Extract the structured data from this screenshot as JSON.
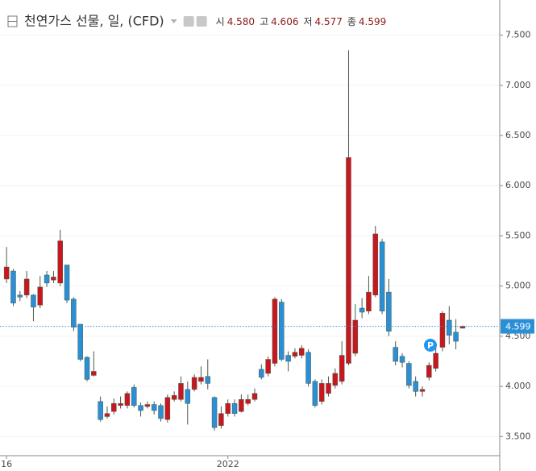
{
  "chart_data": {
    "type": "candlestick",
    "title": "천연가스 선물, 일, (CFD)",
    "ohlc_labels": [
      "시",
      "고",
      "저",
      "종"
    ],
    "ohlc_values": [
      "4.580",
      "4.606",
      "4.577",
      "4.599"
    ],
    "annotation": "P",
    "categories": [
      "16",
      null,
      null,
      null,
      null,
      null,
      null,
      null,
      null,
      null,
      null,
      null,
      null,
      null,
      null,
      null,
      null,
      null,
      null,
      null,
      null,
      null,
      null,
      null,
      null,
      null,
      null,
      null,
      null,
      null,
      null,
      null,
      null,
      "2022",
      null,
      null,
      null,
      null,
      null,
      null,
      null,
      null,
      null,
      null,
      null,
      null,
      null,
      null,
      null,
      null,
      null,
      null,
      null,
      null,
      null,
      null,
      null,
      null,
      null,
      null,
      null,
      null,
      null,
      null,
      null,
      null,
      null,
      null,
      null
    ],
    "open": [
      5.07,
      5.15,
      4.91,
      4.91,
      4.91,
      4.81,
      5.11,
      5.06,
      5.03,
      5.21,
      4.87,
      4.62,
      4.29,
      4.11,
      3.85,
      3.7,
      3.75,
      3.81,
      3.81,
      3.99,
      3.81,
      3.8,
      3.82,
      3.81,
      3.67,
      3.87,
      3.87,
      3.97,
      3.97,
      4.05,
      4.1,
      3.89,
      3.61,
      3.73,
      3.83,
      3.75,
      3.83,
      3.87,
      4.17,
      4.13,
      4.23,
      4.84,
      4.31,
      4.3,
      4.31,
      4.34,
      4.05,
      3.85,
      3.93,
      4.01,
      4.05,
      4.23,
      4.33,
      4.78,
      4.75,
      4.91,
      5.44,
      4.94,
      4.39,
      4.3,
      4.23,
      4.05,
      3.95,
      4.09,
      4.18,
      4.39,
      4.66,
      4.54,
      4.58
    ],
    "high": [
      5.39,
      5.17,
      4.95,
      5.15,
      4.92,
      5.1,
      5.15,
      5.15,
      5.56,
      5.21,
      4.89,
      4.62,
      4.3,
      4.35,
      3.9,
      3.8,
      3.88,
      3.9,
      3.95,
      4.02,
      3.84,
      3.85,
      3.85,
      3.83,
      3.92,
      3.95,
      4.1,
      4.05,
      4.12,
      4.2,
      4.27,
      3.9,
      3.8,
      3.87,
      3.87,
      3.92,
      3.92,
      3.98,
      4.22,
      4.3,
      4.89,
      4.87,
      4.35,
      4.38,
      4.41,
      4.37,
      4.07,
      4.07,
      4.1,
      4.18,
      4.45,
      7.35,
      4.82,
      4.88,
      5.1,
      5.6,
      5.47,
      5.07,
      4.45,
      4.33,
      4.25,
      4.1,
      4.0,
      4.24,
      4.38,
      4.75,
      4.8,
      4.67,
      4.606
    ],
    "low": [
      5.03,
      4.8,
      4.85,
      4.88,
      4.65,
      4.78,
      4.99,
      5.03,
      5.0,
      4.83,
      4.55,
      4.25,
      4.05,
      4.1,
      3.65,
      3.68,
      3.72,
      3.78,
      3.78,
      3.79,
      3.7,
      3.78,
      3.72,
      3.65,
      3.64,
      3.85,
      3.85,
      3.62,
      3.95,
      4.02,
      3.97,
      3.56,
      3.58,
      3.7,
      3.7,
      3.74,
      3.81,
      3.85,
      4.07,
      4.1,
      4.2,
      4.25,
      4.15,
      4.28,
      4.28,
      4.0,
      3.79,
      3.82,
      3.9,
      3.98,
      4.02,
      4.21,
      4.3,
      4.68,
      4.72,
      4.89,
      4.72,
      4.5,
      4.21,
      4.19,
      3.98,
      3.9,
      3.9,
      4.06,
      4.15,
      4.35,
      4.42,
      4.37,
      4.577
    ],
    "close": [
      5.19,
      4.83,
      4.89,
      5.07,
      4.79,
      4.99,
      5.03,
      5.09,
      5.45,
      4.86,
      4.59,
      4.27,
      4.07,
      4.15,
      3.67,
      3.73,
      3.83,
      3.83,
      3.93,
      3.81,
      3.76,
      3.82,
      3.76,
      3.68,
      3.89,
      3.91,
      4.03,
      3.83,
      4.09,
      4.09,
      4.03,
      3.59,
      3.73,
      3.83,
      3.73,
      3.87,
      3.87,
      3.93,
      4.09,
      4.27,
      4.87,
      4.27,
      4.25,
      4.34,
      4.38,
      4.03,
      3.81,
      4.03,
      4.03,
      4.13,
      4.31,
      6.28,
      4.66,
      4.74,
      4.94,
      5.52,
      4.75,
      4.55,
      4.25,
      4.24,
      4.01,
      3.95,
      3.97,
      4.21,
      4.33,
      4.73,
      4.51,
      4.45,
      4.599
    ],
    "up_color": "#c8171e",
    "down_color": "#2b8fd6",
    "wick_color": "#4a5a4a",
    "price_line_color": "#2b8fd6",
    "ylim": [
      3.31,
      7.85
    ],
    "yticks": [
      {
        "value": 3.5,
        "label": "3.500"
      },
      {
        "value": 4,
        "label": "4.000"
      },
      {
        "value": 4.5,
        "label": "4.500"
      },
      {
        "value": 5,
        "label": "5.000"
      },
      {
        "value": 5.5,
        "label": "5.500"
      },
      {
        "value": 6,
        "label": "6.000"
      },
      {
        "value": 6.5,
        "label": "6.500"
      },
      {
        "value": 7,
        "label": "7.000"
      },
      {
        "value": 7.5,
        "label": "7.500"
      }
    ],
    "grid": true
  }
}
